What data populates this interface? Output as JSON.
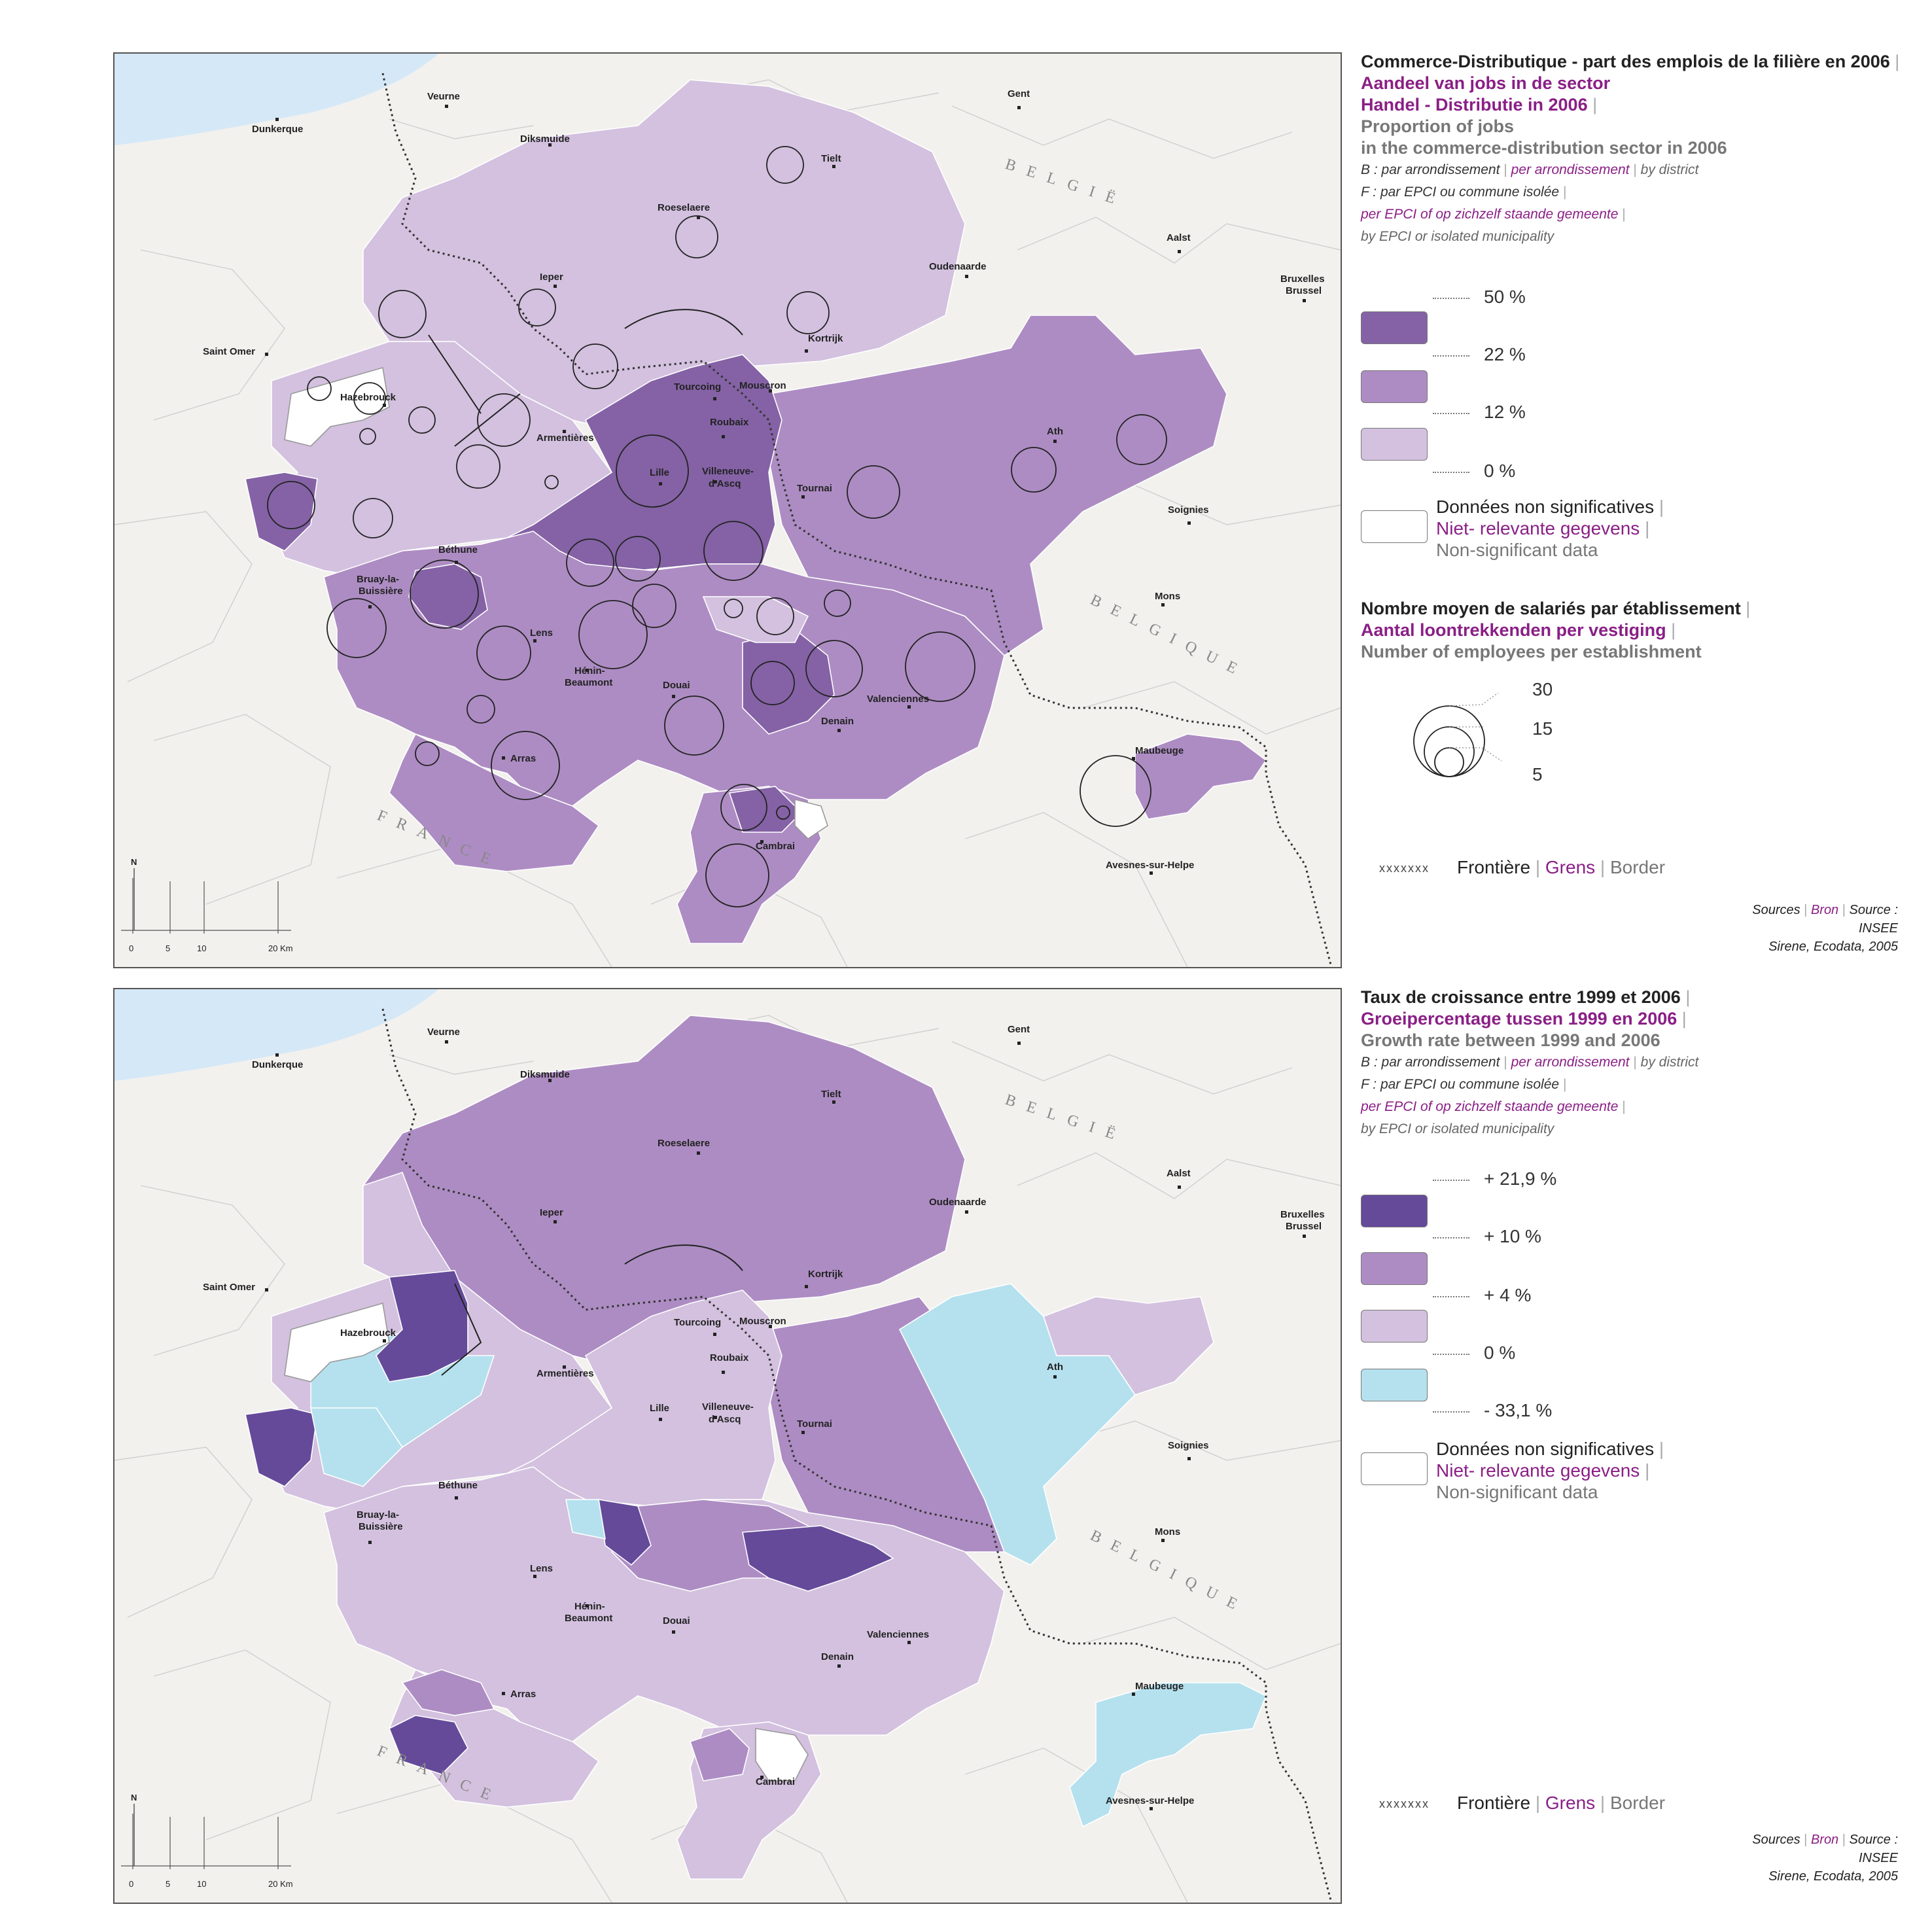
{
  "colors": {
    "ocean": "#d5e8f7",
    "land_bg": "#f2f1ee",
    "admin_line": "#c9c9c9",
    "class_high": "#8462a5",
    "class_mid": "#ad8cc3",
    "class_low": "#d3c1df",
    "class_dark": "#654a9a",
    "class_neg": "#b5e1ee",
    "nonsig": "#ffffff",
    "nl_text": "#8a1f86"
  },
  "cities": [
    {
      "name": "Dunkerque"
    },
    {
      "name": "Veurne"
    },
    {
      "name": "Diksmuide"
    },
    {
      "name": "Gent"
    },
    {
      "name": "Tielt"
    },
    {
      "name": "Roeselaere"
    },
    {
      "name": "Ieper"
    },
    {
      "name": "Oudenaarde"
    },
    {
      "name": "Aalst"
    },
    {
      "name": "Bruxelles"
    },
    {
      "name": "Brussel"
    },
    {
      "name": "Saint Omer"
    },
    {
      "name": "Kortrijk"
    },
    {
      "name": "Hazebrouck"
    },
    {
      "name": "Tourcoing"
    },
    {
      "name": "Mouscron"
    },
    {
      "name": "Roubaix"
    },
    {
      "name": "Armentières"
    },
    {
      "name": "Lille"
    },
    {
      "name": "Villeneuve-"
    },
    {
      "name": "d'Ascq"
    },
    {
      "name": "Ath"
    },
    {
      "name": "Tournai"
    },
    {
      "name": "Soignies"
    },
    {
      "name": "Béthune"
    },
    {
      "name": "Bruay-la-"
    },
    {
      "name": "Buissière"
    },
    {
      "name": "Mons"
    },
    {
      "name": "Lens"
    },
    {
      "name": "Hénin-"
    },
    {
      "name": "Beaumont"
    },
    {
      "name": "Douai"
    },
    {
      "name": "Valenciennes"
    },
    {
      "name": "Denain"
    },
    {
      "name": "Arras"
    },
    {
      "name": "Maubeuge"
    },
    {
      "name": "Cambrai"
    },
    {
      "name": "Avesnes-sur-Helpe"
    }
  ],
  "country_labels": {
    "belgie": "BELGIË",
    "belgique": "BELGIQUE",
    "france": "FRANCE"
  },
  "north": "N",
  "scale": {
    "ticks": [
      "0",
      "5",
      "10",
      "20 Km"
    ]
  },
  "map1": {
    "title_fr": "Commerce-Distributique - part des emplois de la filière en 2006",
    "title_nl_1": "Aandeel van jobs in de sector",
    "title_nl_2": "Handel - Distributie in 2006",
    "title_en_1": "Proportion of jobs",
    "title_en_2": "in the commerce-distribution sector in 2006",
    "sub_b_fr": "B : par arrondissement",
    "sub_b_nl": "per arrondissement",
    "sub_b_en": "by district",
    "sub_f_fr": "F : par EPCI ou commune isolée",
    "sub_f_nl": "per EPCI of op zichzelf staande gemeente",
    "sub_f_en": "by EPCI or isolated municipality",
    "breaks": [
      "50 %",
      "22 %",
      "12 %",
      "0 %"
    ],
    "nonsig_fr": "Données non significatives",
    "nonsig_nl": "Niet- relevante gegevens",
    "nonsig_en": "Non-significant data",
    "circle_title_fr": "Nombre moyen de salariés par établissement",
    "circle_title_nl": "Aantal loontrekkenden per vestiging",
    "circle_title_en": "Number of employees per establishment",
    "circle_values": [
      "30",
      "15",
      "5"
    ]
  },
  "map2": {
    "title_fr": "Taux de croissance entre 1999 et 2006",
    "title_nl": "Groeipercentage tussen 1999 en 2006",
    "title_en": "Growth rate between 1999 and 2006",
    "sub_b_fr": "B : par arrondissement",
    "sub_b_nl": "per arrondissement",
    "sub_b_en": "by district",
    "sub_f_fr": "F : par EPCI ou commune isolée",
    "sub_f_nl": "per EPCI of op zichzelf staande gemeente",
    "sub_f_en": "by EPCI or isolated municipality",
    "breaks": [
      "+ 21,9 %",
      "+ 10 %",
      "+ 4 %",
      "0 %",
      "- 33,1 %"
    ],
    "nonsig_fr": "Données non significatives",
    "nonsig_nl": "Niet- relevante gegevens",
    "nonsig_en": "Non-significant data"
  },
  "border_legend": {
    "fr": "Frontière",
    "nl": "Grens",
    "en": "Border",
    "marks": "xxxxxxx"
  },
  "sources": {
    "fr": "Sources",
    "nl": "Bron",
    "en": "Source :",
    "line1": "INSEE",
    "line2": "Sirene, Ecodata, 2005"
  }
}
